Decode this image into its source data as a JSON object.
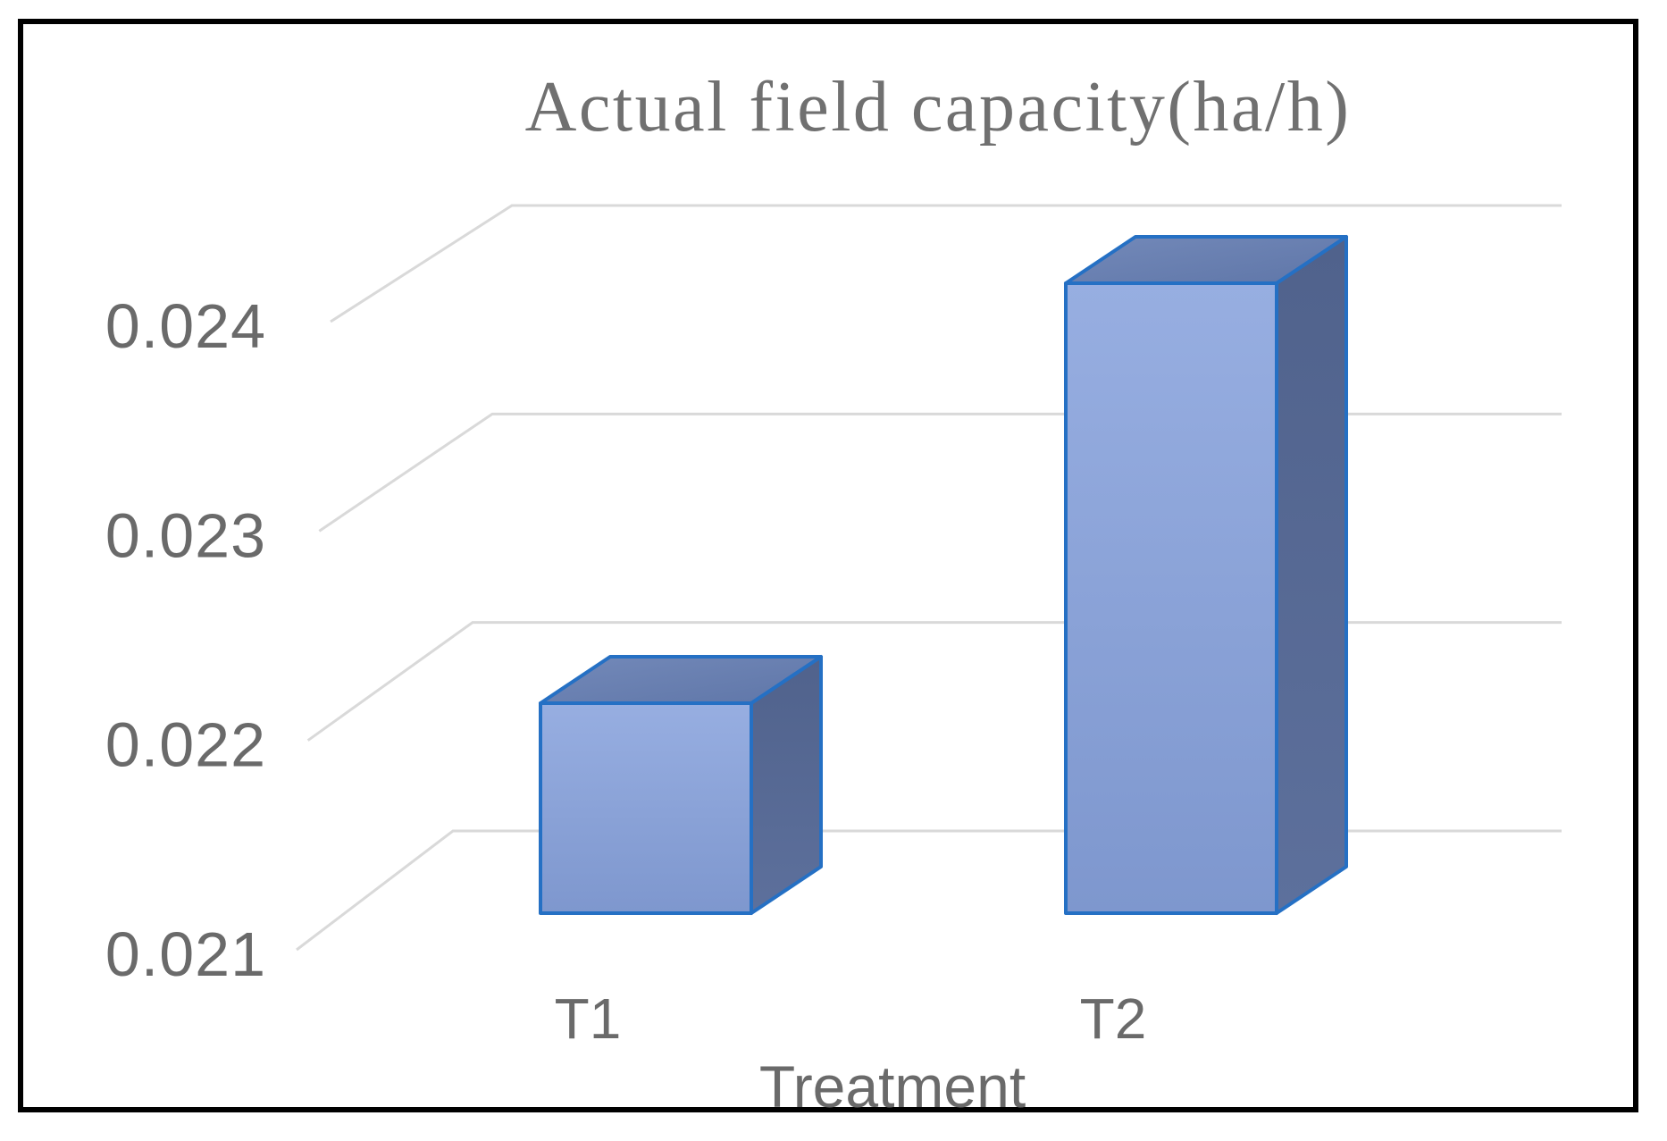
{
  "figure": {
    "border_color": "#000000",
    "background": "#ffffff"
  },
  "chart_data": {
    "type": "bar",
    "style": "3d-column",
    "title": "Actual field capacity(ha/h)",
    "xlabel": "Treatment",
    "ylabel": "",
    "categories": [
      "T1",
      "T2"
    ],
    "values": [
      0.022,
      0.024
    ],
    "yticks": [
      0.021,
      0.022,
      0.023,
      0.024
    ],
    "ytick_labels": [
      "0.021",
      "0.022",
      "0.023",
      "0.024"
    ],
    "ylim": [
      0.021,
      0.0245
    ],
    "grid": true,
    "legend": "none",
    "colors": {
      "bar_front": [
        "#97AEE1",
        "#7E97CE"
      ],
      "bar_top": [
        "#7389B9",
        "#5F76A8"
      ],
      "bar_side": [
        "#50628C",
        "#5D709C"
      ],
      "bar_outline": "#2570C4",
      "gridline": "#D9D9D9",
      "tick_text": "#6A6A6A",
      "title_text": "#707070"
    }
  }
}
